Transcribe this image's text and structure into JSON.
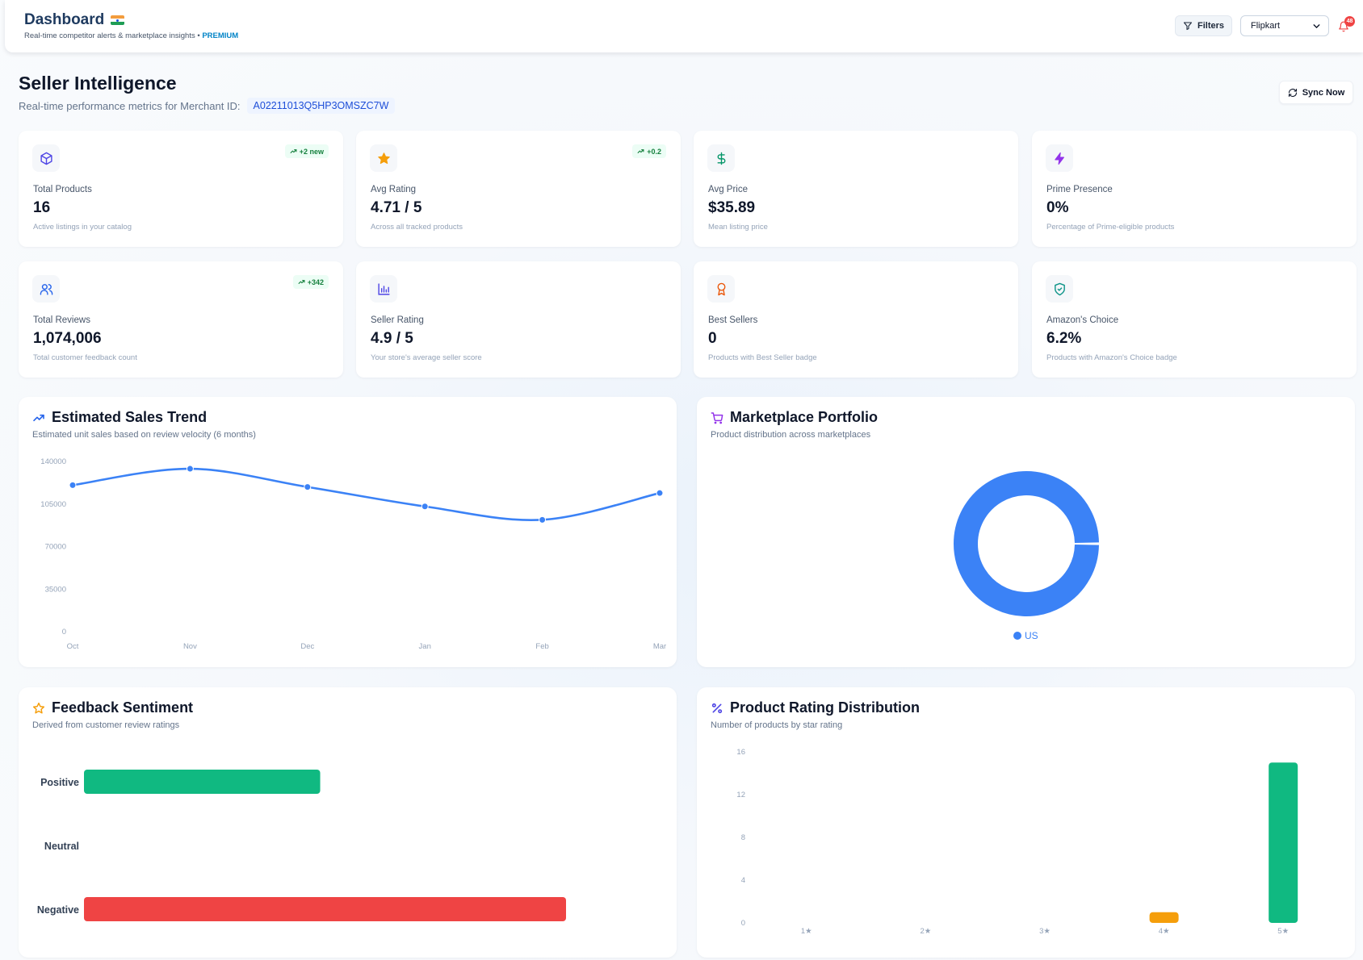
{
  "header": {
    "title": "Dashboard",
    "subtitle": "Real-time competitor alerts & marketplace insights •",
    "premium": "PREMIUM",
    "filters_label": "Filters",
    "marketplace": "Flipkart",
    "notification_count": "48"
  },
  "page": {
    "title": "Seller Intelligence",
    "subtitle": "Real-time performance metrics for Merchant ID:",
    "merchant_id": "A02211013Q5HP3OMSZC7W",
    "sync_label": "Sync Now"
  },
  "stats": [
    {
      "icon": "package-icon",
      "label": "Total Products",
      "value": "16",
      "hint": "Active listings in your catalog",
      "badge": "+2 new"
    },
    {
      "icon": "star-icon",
      "label": "Avg Rating",
      "value": "4.71 / 5",
      "hint": "Across all tracked products",
      "badge": "+0.2"
    },
    {
      "icon": "dollar-icon",
      "label": "Avg Price",
      "value": "$35.89",
      "hint": "Mean listing price",
      "badge": ""
    },
    {
      "icon": "zap-icon",
      "label": "Prime Presence",
      "value": "0%",
      "hint": "Percentage of Prime-eligible products",
      "badge": ""
    },
    {
      "icon": "users-icon",
      "label": "Total Reviews",
      "value": "1,074,006",
      "hint": "Total customer feedback count",
      "badge": "+342"
    },
    {
      "icon": "bar-chart-icon",
      "label": "Seller Rating",
      "value": "4.9 / 5",
      "hint": "Your store's average seller score",
      "badge": ""
    },
    {
      "icon": "award-icon",
      "label": "Best Sellers",
      "value": "0",
      "hint": "Products with Best Seller badge",
      "badge": ""
    },
    {
      "icon": "shield-check-icon",
      "label": "Amazon's Choice",
      "value": "6.2%",
      "hint": "Products with Amazon's Choice badge",
      "badge": ""
    }
  ],
  "panels": {
    "sales": {
      "title": "Estimated Sales Trend",
      "subtitle": "Estimated unit sales based on review velocity (6 months)"
    },
    "portfolio": {
      "title": "Marketplace Portfolio",
      "subtitle": "Product distribution across marketplaces"
    },
    "sentiment": {
      "title": "Feedback Sentiment",
      "subtitle": "Derived from customer review ratings"
    },
    "rating_dist": {
      "title": "Product Rating Distribution",
      "subtitle": "Number of products by star rating"
    }
  },
  "colors": {
    "accent_blue": "#3b82f6",
    "positive": "#10b981",
    "negative": "#ef4444",
    "four_star": "#f59e0b",
    "five_star": "#10b981"
  },
  "chart_data": [
    {
      "type": "line",
      "title": "Estimated Sales Trend",
      "x": [
        "Oct",
        "Nov",
        "Dec",
        "Jan",
        "Feb",
        "Mar"
      ],
      "values": [
        120500,
        134000,
        119000,
        103000,
        92000,
        114000
      ],
      "ylim": [
        0,
        140000
      ],
      "yticks": [
        0,
        35000,
        70000,
        105000,
        140000
      ],
      "grid": false
    },
    {
      "type": "pie",
      "title": "Marketplace Portfolio",
      "categories": [
        "US"
      ],
      "values": [
        100
      ],
      "legend": "bottom"
    },
    {
      "type": "bar",
      "orientation": "horizontal",
      "title": "Feedback Sentiment",
      "categories": [
        "Positive",
        "Neutral",
        "Negative"
      ],
      "values": [
        49,
        0,
        100
      ]
    },
    {
      "type": "bar",
      "title": "Product Rating Distribution",
      "categories": [
        "1★",
        "2★",
        "3★",
        "4★",
        "5★"
      ],
      "values": [
        0,
        0,
        0,
        1,
        15
      ],
      "ylim": [
        0,
        16
      ],
      "yticks": [
        0,
        4,
        8,
        12,
        16
      ]
    }
  ]
}
